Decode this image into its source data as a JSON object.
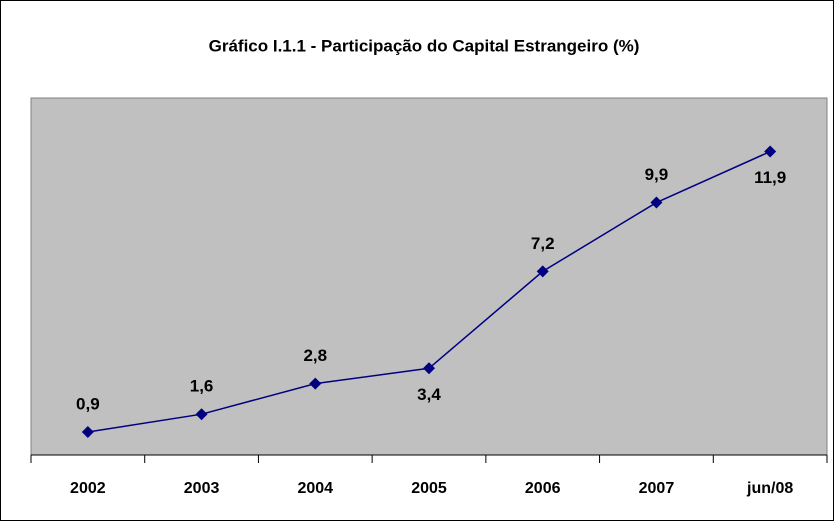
{
  "chart_data": {
    "type": "line",
    "title": "Gráfico I.1.1 - Participação do Capital Estrangeiro (%)",
    "categories": [
      "2002",
      "2003",
      "2004",
      "2005",
      "2006",
      "2007",
      "jun/08"
    ],
    "series": [
      {
        "color": "#000080",
        "values": [
          0.9,
          1.6,
          2.8,
          3.4,
          7.2,
          9.9,
          11.9
        ],
        "value_labels": [
          "0,9",
          "1,6",
          "2,8",
          "3,4",
          "7,2",
          "9,9",
          "11,9"
        ]
      }
    ],
    "ylim": [
      0,
      14
    ]
  }
}
